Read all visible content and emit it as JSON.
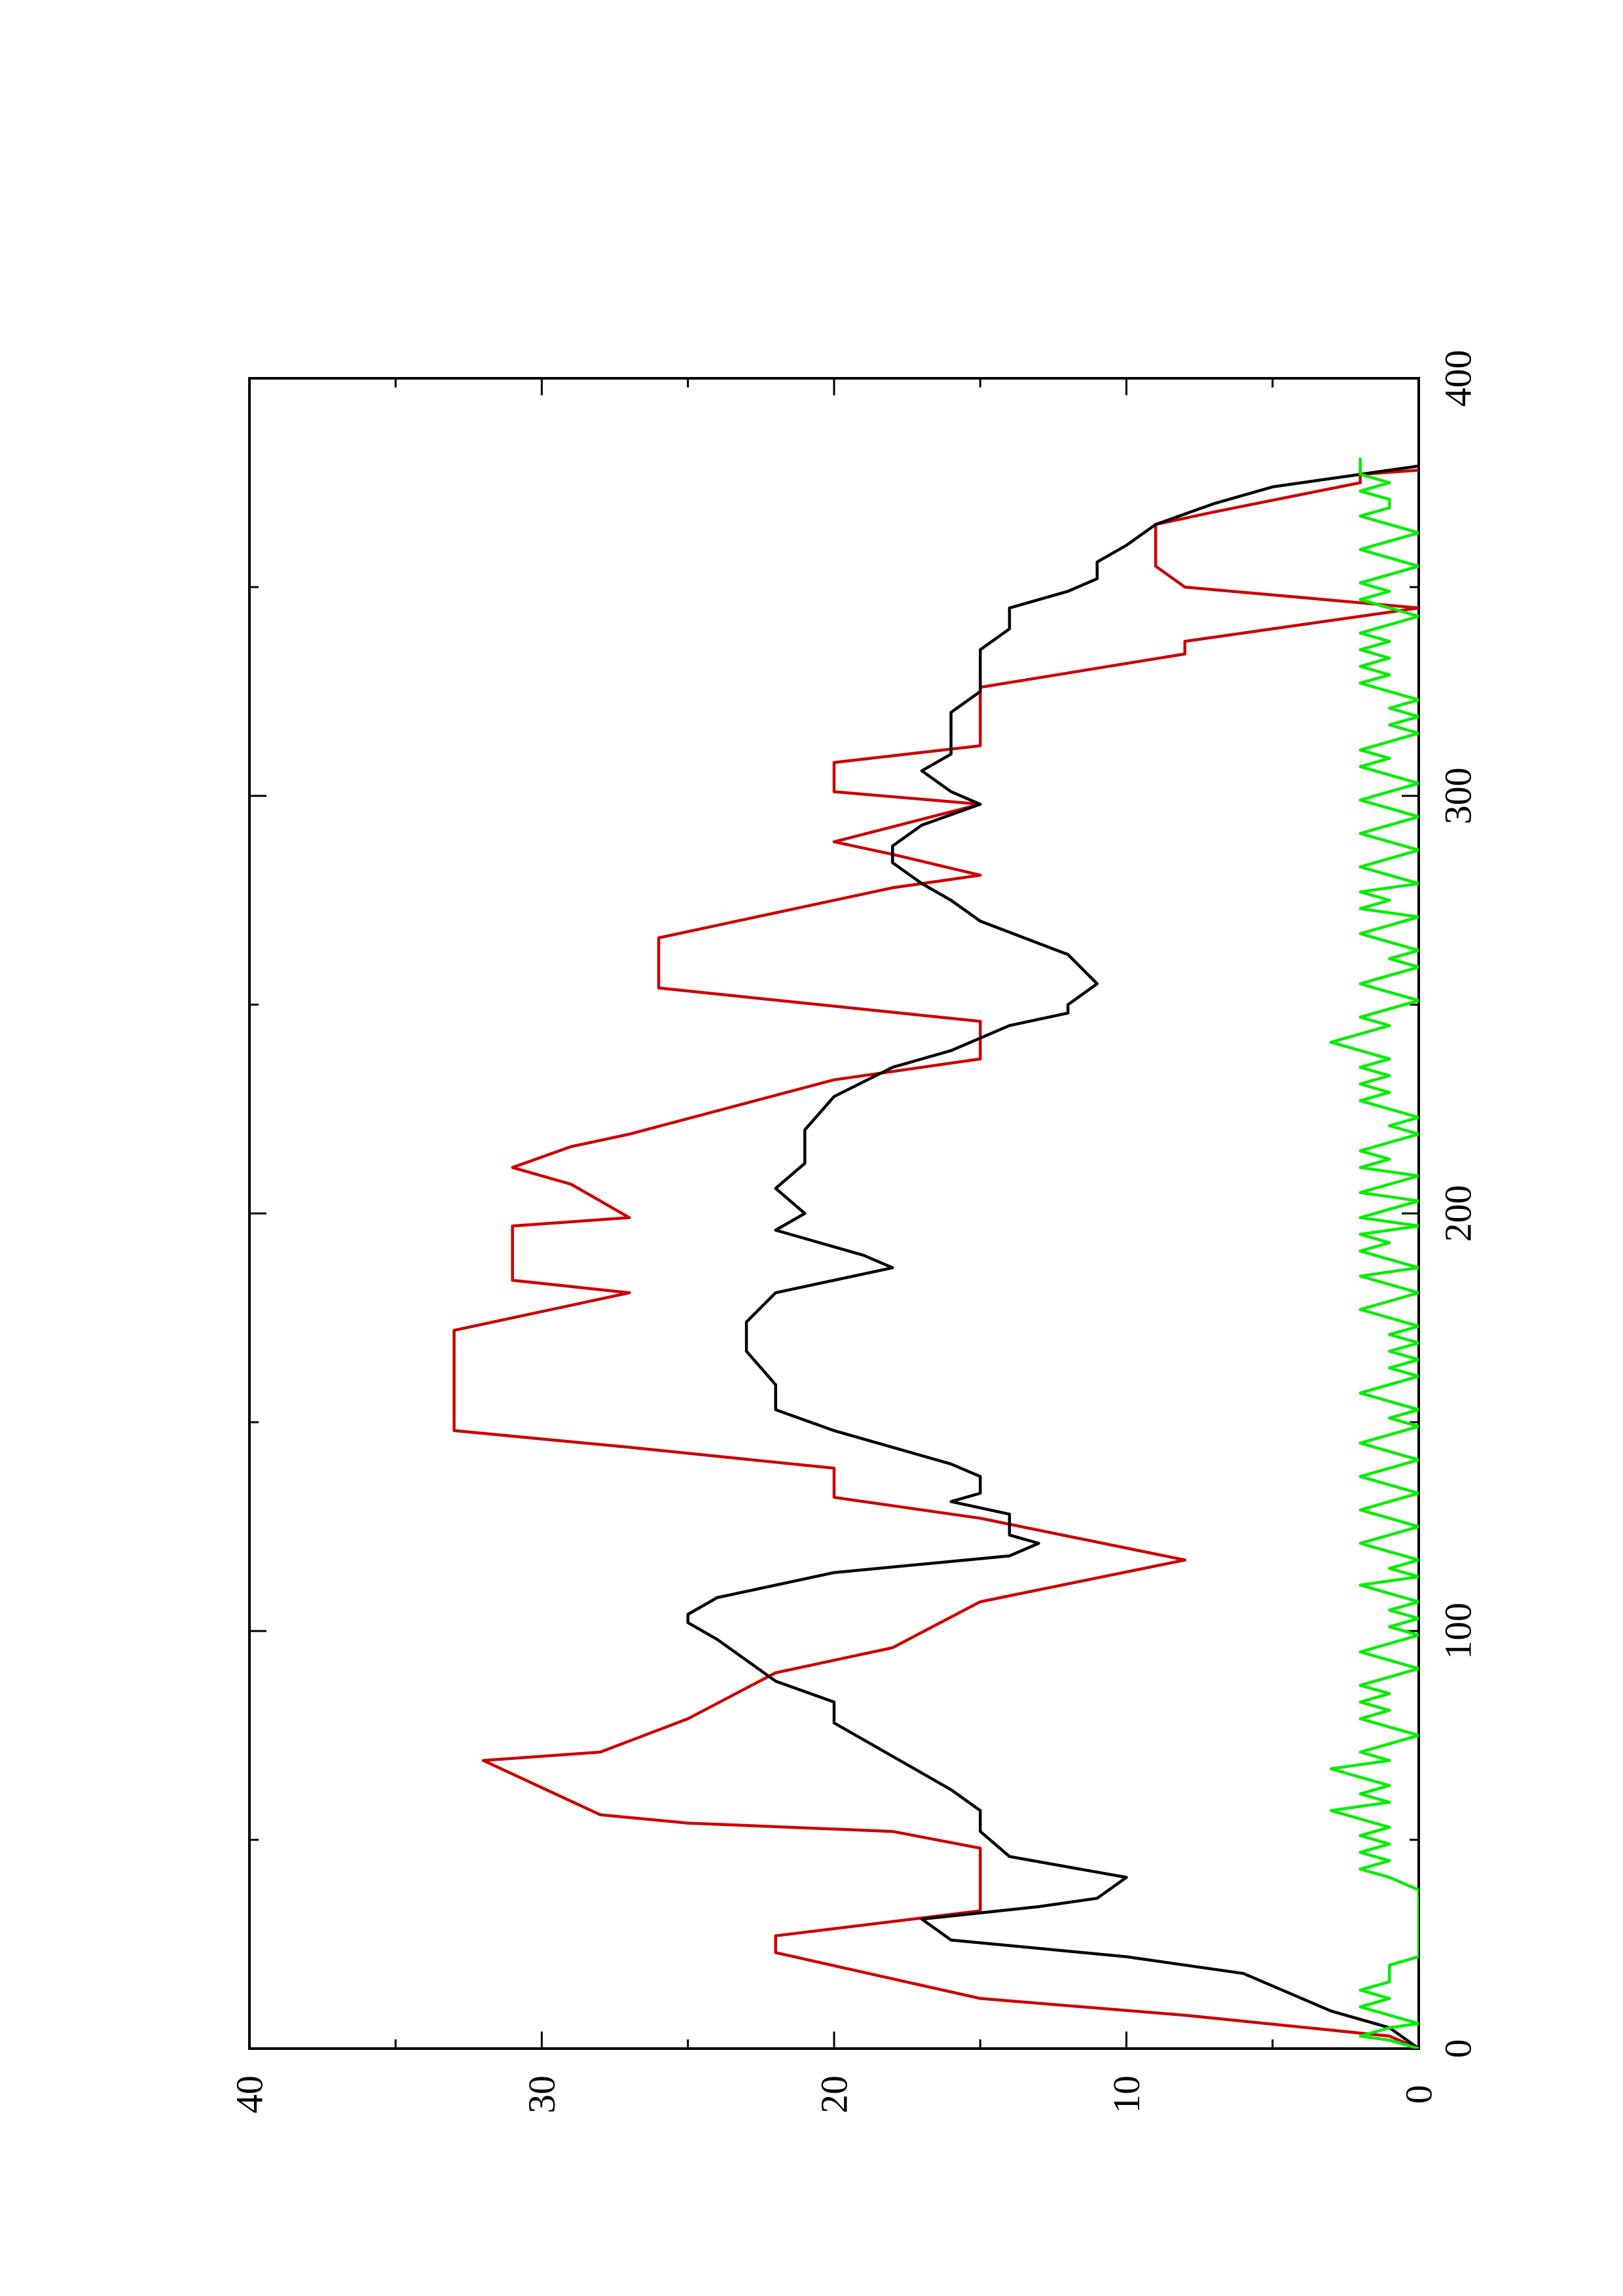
{
  "chart_data": {
    "type": "line",
    "title": "",
    "xlabel": "",
    "ylabel": "",
    "xlim": [
      0,
      400
    ],
    "ylim": [
      0,
      40
    ],
    "x_major_ticks": [
      0,
      100,
      200,
      300,
      400
    ],
    "x_minor_ticks": [
      50,
      150,
      250,
      350
    ],
    "y_major_ticks": [
      0,
      10,
      20,
      30,
      40
    ],
    "y_minor_ticks": [
      5,
      15,
      25,
      35
    ],
    "x_tick_labels": [
      "0",
      "100",
      "200",
      "300",
      "400"
    ],
    "y_tick_labels": [
      "0",
      "10",
      "20",
      "30",
      "40"
    ],
    "orientation": "rotated 90 degrees counter-clockwise",
    "grid": false,
    "legend": "none",
    "series": [
      {
        "color": "#cc0000",
        "points": [
          [
            0,
            0
          ],
          [
            3,
            1
          ],
          [
            8,
            8
          ],
          [
            12,
            15
          ],
          [
            23,
            22
          ],
          [
            27,
            22
          ],
          [
            33,
            15
          ],
          [
            48,
            15
          ],
          [
            52,
            18
          ],
          [
            54,
            25
          ],
          [
            56,
            28
          ],
          [
            69,
            32
          ],
          [
            71,
            28
          ],
          [
            79,
            25
          ],
          [
            90,
            22
          ],
          [
            96,
            18
          ],
          [
            107,
            15
          ],
          [
            117,
            8
          ],
          [
            127,
            15
          ],
          [
            132,
            20
          ],
          [
            139,
            20
          ],
          [
            144,
            27
          ],
          [
            148,
            33
          ],
          [
            172,
            33
          ],
          [
            181,
            27
          ],
          [
            184,
            31
          ],
          [
            197,
            31
          ],
          [
            199,
            27
          ],
          [
            207,
            29
          ],
          [
            211,
            31
          ],
          [
            216,
            29
          ],
          [
            219,
            27
          ],
          [
            232,
            20
          ],
          [
            237,
            15
          ],
          [
            246,
            15
          ],
          [
            254,
            26
          ],
          [
            266,
            26
          ],
          [
            278,
            18
          ],
          [
            281,
            15
          ],
          [
            286,
            18
          ],
          [
            289,
            20
          ],
          [
            298,
            15
          ],
          [
            301,
            20
          ],
          [
            308,
            20
          ],
          [
            312,
            15
          ],
          [
            326,
            15
          ],
          [
            334,
            8
          ],
          [
            337,
            8
          ],
          [
            345,
            0
          ],
          [
            350,
            8
          ],
          [
            355,
            9
          ],
          [
            365,
            9
          ],
          [
            368,
            7
          ],
          [
            375,
            2
          ],
          [
            377,
            2
          ],
          [
            378,
            0
          ]
        ]
      },
      {
        "color": "#000000",
        "points": [
          [
            0,
            0
          ],
          [
            5,
            1
          ],
          [
            9,
            3
          ],
          [
            12,
            4
          ],
          [
            18,
            6
          ],
          [
            22,
            10
          ],
          [
            26,
            16
          ],
          [
            31,
            17
          ],
          [
            34,
            13
          ],
          [
            36,
            11
          ],
          [
            41,
            10
          ],
          [
            46,
            14
          ],
          [
            52,
            15
          ],
          [
            57,
            15
          ],
          [
            62,
            16
          ],
          [
            66,
            17
          ],
          [
            70,
            18
          ],
          [
            74,
            19
          ],
          [
            78,
            20
          ],
          [
            83,
            20
          ],
          [
            88,
            22
          ],
          [
            93,
            23
          ],
          [
            98,
            24
          ],
          [
            102,
            25
          ],
          [
            104,
            25
          ],
          [
            108,
            24
          ],
          [
            114,
            20
          ],
          [
            118,
            14
          ],
          [
            121,
            13
          ],
          [
            123,
            14
          ],
          [
            128,
            14
          ],
          [
            131,
            16
          ],
          [
            133,
            15
          ],
          [
            137,
            15
          ],
          [
            140,
            16
          ],
          [
            144,
            18
          ],
          [
            148,
            20
          ],
          [
            153,
            22
          ],
          [
            159,
            22
          ],
          [
            167,
            23
          ],
          [
            174,
            23
          ],
          [
            181,
            22
          ],
          [
            187,
            18
          ],
          [
            190,
            19
          ],
          [
            196,
            22
          ],
          [
            200,
            21
          ],
          [
            206,
            22
          ],
          [
            212,
            21
          ],
          [
            220,
            21
          ],
          [
            228,
            20
          ],
          [
            235,
            18
          ],
          [
            239,
            16
          ],
          [
            245,
            14
          ],
          [
            248,
            12
          ],
          [
            250,
            12
          ],
          [
            255,
            11
          ],
          [
            262,
            12
          ],
          [
            270,
            15
          ],
          [
            275,
            16
          ],
          [
            279,
            17
          ],
          [
            284,
            18
          ],
          [
            288,
            18
          ],
          [
            293,
            17
          ],
          [
            298,
            15
          ],
          [
            301,
            16
          ],
          [
            306,
            17
          ],
          [
            310,
            16
          ],
          [
            315,
            16
          ],
          [
            320,
            16
          ],
          [
            325,
            15
          ],
          [
            330,
            15
          ],
          [
            335,
            15
          ],
          [
            340,
            14
          ],
          [
            345,
            14
          ],
          [
            349,
            12
          ],
          [
            352,
            11
          ],
          [
            356,
            11
          ],
          [
            360,
            10
          ],
          [
            365,
            9
          ],
          [
            370,
            7
          ],
          [
            374,
            5
          ],
          [
            376,
            3
          ],
          [
            378,
            1
          ],
          [
            379,
            0
          ]
        ]
      },
      {
        "color": "#00ee00",
        "points": [
          [
            0,
            0
          ],
          [
            2,
            1
          ],
          [
            3,
            2
          ],
          [
            5,
            1
          ],
          [
            6,
            0
          ],
          [
            8,
            1
          ],
          [
            10,
            2
          ],
          [
            12,
            1
          ],
          [
            14,
            2
          ],
          [
            16,
            1
          ],
          [
            18,
            1
          ],
          [
            20,
            1
          ],
          [
            22,
            0
          ],
          [
            26,
            0
          ],
          [
            30,
            0
          ],
          [
            34,
            0
          ],
          [
            38,
            0
          ],
          [
            41,
            1
          ],
          [
            43,
            2
          ],
          [
            45,
            1
          ],
          [
            47,
            2
          ],
          [
            49,
            1
          ],
          [
            51,
            2
          ],
          [
            53,
            1
          ],
          [
            55,
            2
          ],
          [
            57,
            3
          ],
          [
            59,
            1
          ],
          [
            61,
            2
          ],
          [
            63,
            1
          ],
          [
            65,
            2
          ],
          [
            67,
            3
          ],
          [
            69,
            1
          ],
          [
            71,
            2
          ],
          [
            73,
            1
          ],
          [
            75,
            0
          ],
          [
            77,
            1
          ],
          [
            79,
            2
          ],
          [
            81,
            1
          ],
          [
            83,
            2
          ],
          [
            85,
            1
          ],
          [
            87,
            2
          ],
          [
            89,
            1
          ],
          [
            91,
            0
          ],
          [
            93,
            1
          ],
          [
            95,
            2
          ],
          [
            97,
            1
          ],
          [
            99,
            0
          ],
          [
            101,
            1
          ],
          [
            103,
            0
          ],
          [
            105,
            1
          ],
          [
            107,
            0
          ],
          [
            109,
            1
          ],
          [
            111,
            2
          ],
          [
            113,
            0
          ],
          [
            115,
            1
          ],
          [
            117,
            0
          ],
          [
            119,
            1
          ],
          [
            121,
            2
          ],
          [
            123,
            1
          ],
          [
            125,
            0
          ],
          [
            127,
            1
          ],
          [
            129,
            2
          ],
          [
            131,
            1
          ],
          [
            133,
            0
          ],
          [
            135,
            1
          ],
          [
            137,
            2
          ],
          [
            139,
            1
          ],
          [
            141,
            0
          ],
          [
            143,
            1
          ],
          [
            145,
            2
          ],
          [
            147,
            1
          ],
          [
            149,
            0
          ],
          [
            151,
            1
          ],
          [
            153,
            0
          ],
          [
            155,
            1
          ],
          [
            157,
            2
          ],
          [
            159,
            1
          ],
          [
            161,
            0
          ],
          [
            163,
            1
          ],
          [
            165,
            0
          ],
          [
            167,
            1
          ],
          [
            169,
            0
          ],
          [
            171,
            1
          ],
          [
            173,
            0
          ],
          [
            175,
            1
          ],
          [
            177,
            2
          ],
          [
            179,
            1
          ],
          [
            181,
            0
          ],
          [
            183,
            1
          ],
          [
            185,
            2
          ],
          [
            187,
            0
          ],
          [
            189,
            1
          ],
          [
            191,
            2
          ],
          [
            193,
            1
          ],
          [
            195,
            2
          ],
          [
            197,
            0
          ],
          [
            199,
            2
          ],
          [
            201,
            1
          ],
          [
            203,
            0
          ],
          [
            205,
            2
          ],
          [
            207,
            1
          ],
          [
            209,
            0
          ],
          [
            211,
            2
          ],
          [
            213,
            1
          ],
          [
            215,
            2
          ],
          [
            217,
            1
          ],
          [
            219,
            0
          ],
          [
            221,
            1
          ],
          [
            223,
            0
          ],
          [
            225,
            1
          ],
          [
            227,
            2
          ],
          [
            229,
            1
          ],
          [
            231,
            2
          ],
          [
            233,
            1
          ],
          [
            235,
            2
          ],
          [
            237,
            1
          ],
          [
            239,
            2
          ],
          [
            241,
            3
          ],
          [
            243,
            2
          ],
          [
            245,
            1
          ],
          [
            247,
            2
          ],
          [
            249,
            1
          ],
          [
            251,
            0
          ],
          [
            253,
            1
          ],
          [
            255,
            2
          ],
          [
            257,
            1
          ],
          [
            259,
            0
          ],
          [
            261,
            1
          ],
          [
            263,
            0
          ],
          [
            265,
            1
          ],
          [
            267,
            2
          ],
          [
            269,
            1
          ],
          [
            271,
            0
          ],
          [
            273,
            2
          ],
          [
            275,
            1
          ],
          [
            277,
            2
          ],
          [
            279,
            0
          ],
          [
            281,
            1
          ],
          [
            283,
            2
          ],
          [
            285,
            1
          ],
          [
            287,
            0
          ],
          [
            289,
            1
          ],
          [
            291,
            2
          ],
          [
            293,
            1
          ],
          [
            295,
            0
          ],
          [
            297,
            1
          ],
          [
            299,
            2
          ],
          [
            301,
            1
          ],
          [
            303,
            0
          ],
          [
            305,
            1
          ],
          [
            307,
            2
          ],
          [
            309,
            1
          ],
          [
            311,
            2
          ],
          [
            313,
            1
          ],
          [
            315,
            0
          ],
          [
            317,
            1
          ],
          [
            319,
            0
          ],
          [
            321,
            1
          ],
          [
            323,
            0
          ],
          [
            325,
            1
          ],
          [
            327,
            2
          ],
          [
            329,
            1
          ],
          [
            331,
            2
          ],
          [
            333,
            1
          ],
          [
            335,
            2
          ],
          [
            337,
            1
          ],
          [
            339,
            2
          ],
          [
            341,
            1
          ],
          [
            343,
            0
          ],
          [
            345,
            1
          ],
          [
            347,
            2
          ],
          [
            349,
            1
          ],
          [
            351,
            2
          ],
          [
            353,
            1
          ],
          [
            355,
            0
          ],
          [
            357,
            1
          ],
          [
            359,
            2
          ],
          [
            361,
            1
          ],
          [
            363,
            0
          ],
          [
            365,
            1
          ],
          [
            367,
            2
          ],
          [
            369,
            1
          ],
          [
            371,
            1
          ],
          [
            373,
            2
          ],
          [
            375,
            1
          ],
          [
            377,
            2
          ],
          [
            379,
            2
          ],
          [
            381,
            2
          ]
        ]
      }
    ]
  }
}
